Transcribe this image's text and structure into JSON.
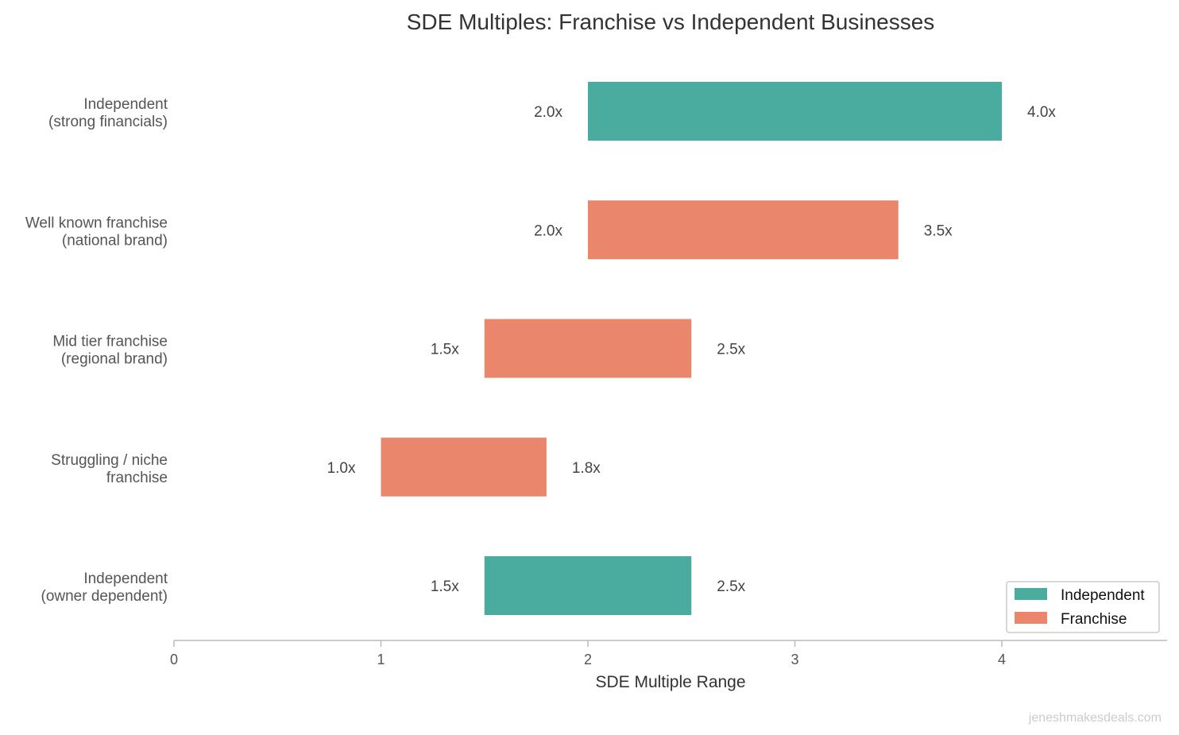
{
  "chart_data": {
    "type": "bar",
    "orientation": "horizontal",
    "title": "SDE Multiples: Franchise vs Independent Businesses",
    "xlabel": "SDE Multiple Range",
    "ylabel": "",
    "xlim": [
      0,
      4.8
    ],
    "xticks": [
      "0",
      "1",
      "2",
      "3",
      "4"
    ],
    "grid": false,
    "legend_position": "bottom-right",
    "categories": [
      {
        "line1": "Independent",
        "line2": "(strong financials)"
      },
      {
        "line1": "Well known franchise",
        "line2": "(national brand)"
      },
      {
        "line1": "Mid tier franchise",
        "line2": "(regional brand)"
      },
      {
        "line1": "Struggling / niche",
        "line2": "franchise"
      },
      {
        "line1": "Independent",
        "line2": "(owner dependent)"
      }
    ],
    "series": [
      {
        "name": "Independent",
        "color": "#4aab9f"
      },
      {
        "name": "Franchise",
        "color": "#e9866c"
      }
    ],
    "ranges": [
      {
        "low": 2.0,
        "high": 4.0,
        "low_label": "2.0x",
        "high_label": "4.0x",
        "series": "Independent"
      },
      {
        "low": 2.0,
        "high": 3.5,
        "low_label": "2.0x",
        "high_label": "3.5x",
        "series": "Franchise"
      },
      {
        "low": 1.5,
        "high": 2.5,
        "low_label": "1.5x",
        "high_label": "2.5x",
        "series": "Franchise"
      },
      {
        "low": 1.0,
        "high": 1.8,
        "low_label": "1.0x",
        "high_label": "1.8x",
        "series": "Franchise"
      },
      {
        "low": 1.5,
        "high": 2.5,
        "low_label": "1.5x",
        "high_label": "2.5x",
        "series": "Independent"
      }
    ],
    "watermark": "jeneshmakesdeals.com"
  }
}
